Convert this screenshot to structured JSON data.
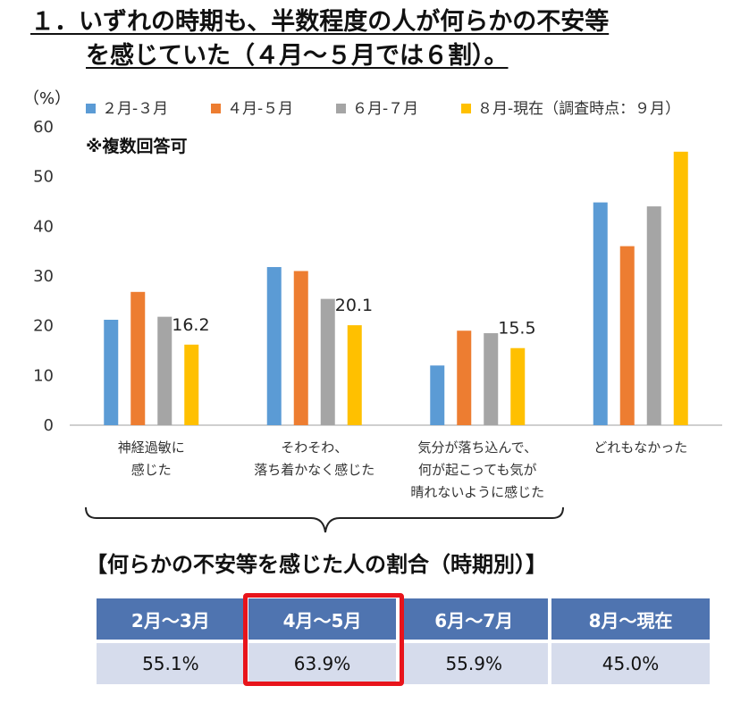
{
  "title": {
    "line1": "１．いずれの時期も、半数程度の人が何らかの不安等",
    "line2": "を感じていた（４月～５月では６割）。"
  },
  "chart_data": {
    "type": "bar",
    "ylabel": "（%）",
    "ylim": [
      0,
      60
    ],
    "yticks": [
      "0",
      "10",
      "20",
      "30",
      "40",
      "50",
      "60"
    ],
    "note": "※複数回答可",
    "categories": [
      [
        "神経過敏に",
        "感じた"
      ],
      [
        "そわそわ、",
        "落ち着かなく感じた"
      ],
      [
        "気分が落ち込んで、",
        "何が起こっても気が",
        "晴れないように感じた"
      ],
      [
        "どれもなかった"
      ]
    ],
    "series": [
      {
        "name": "２月-３月",
        "color": "#5b9bd5",
        "values": [
          21.2,
          31.8,
          12.0,
          44.8
        ]
      },
      {
        "name": "４月-５月",
        "color": "#ed7d31",
        "values": [
          26.8,
          31.0,
          19.0,
          36.0
        ]
      },
      {
        "name": "６月-７月",
        "color": "#a5a5a5",
        "values": [
          21.8,
          25.4,
          18.5,
          44.0
        ]
      },
      {
        "name": "８月-現在（調査時点：９月）",
        "color": "#ffc000",
        "values": [
          16.2,
          20.1,
          15.5,
          55.0
        ]
      }
    ],
    "data_labels": [
      {
        "series": 3,
        "category": 0,
        "text": "16.2"
      },
      {
        "series": 3,
        "category": 1,
        "text": "20.1"
      },
      {
        "series": 3,
        "category": 2,
        "text": "15.5"
      }
    ],
    "legend_position": "top",
    "grid": false
  },
  "summary": {
    "heading": "【何らかの不安等を感じた人の割合（時期別）】",
    "headers": [
      "2月～3月",
      "4月～5月",
      "6月～7月",
      "8月～現在"
    ],
    "values": [
      "55.1%",
      "63.9%",
      "55.9%",
      "45.0%"
    ],
    "highlight_index": 1,
    "highlight_color": "#e8141b",
    "header_color": "#4f74b0",
    "cell_color": "#d6dcec"
  }
}
